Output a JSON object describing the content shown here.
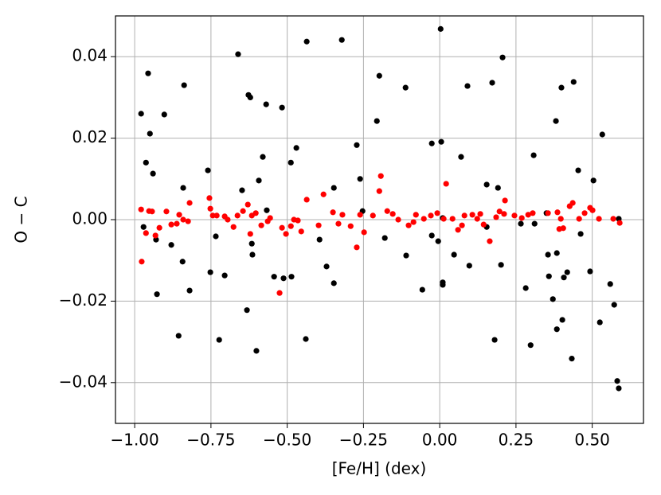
{
  "chart_data": {
    "type": "scatter",
    "xlabel": "[Fe/H] (dex)",
    "ylabel": "O − C",
    "xlim": [
      -1.063,
      0.668
    ],
    "ylim": [
      -0.05,
      0.05
    ],
    "xticks": [
      {
        "value": -1,
        "label": "−1.00"
      },
      {
        "value": -0.75,
        "label": "−0.75"
      },
      {
        "value": -0.5,
        "label": "−0.50"
      },
      {
        "value": -0.25,
        "label": "−0.25"
      },
      {
        "value": 0,
        "label": "0.00"
      },
      0.25,
      {
        "value": 0.5,
        "label": "0.50"
      }
    ],
    "yticks": [
      {
        "value": -0.04,
        "label": "−0.04"
      },
      {
        "value": -0.02,
        "label": "−0.02"
      },
      {
        "value": 0,
        "label": "0.00"
      },
      0.02,
      0.04
    ],
    "grid": true,
    "series": [
      {
        "color": "#000000",
        "x": [
          -0.979,
          -0.971,
          -0.963,
          -0.956,
          -0.95,
          -0.94,
          -0.93,
          -0.927,
          -0.903,
          -0.88,
          -0.841,
          -0.838,
          -0.856,
          -0.843,
          -0.82,
          -0.76,
          -0.752,
          -0.734,
          -0.723,
          -0.705,
          -0.661,
          -0.648,
          -0.632,
          -0.627,
          -0.621,
          -0.616,
          -0.614,
          -0.601,
          -0.593,
          -0.58,
          -0.569,
          -0.567,
          -0.543,
          -0.517,
          -0.512,
          -0.488,
          -0.486,
          -0.47,
          -0.436,
          -0.439,
          -0.394,
          -0.371,
          -0.347,
          -0.347,
          -0.321,
          -0.272,
          -0.261,
          -0.253,
          -0.198,
          -0.206,
          -0.18,
          -0.11,
          -0.112,
          -0.057,
          -0.026,
          -0.026,
          -0.005,
          0.003,
          0.005,
          0.01,
          0.01,
          0.01,
          0.047,
          0.07,
          0.091,
          0.097,
          0.154,
          0.154,
          0.172,
          0.18,
          0.191,
          0.201,
          0.206,
          0.266,
          0.282,
          0.298,
          0.308,
          0.311,
          0.35,
          0.355,
          0.358,
          0.371,
          0.381,
          0.384,
          0.384,
          0.399,
          0.402,
          0.407,
          0.418,
          0.433,
          0.439,
          0.454,
          0.462,
          0.493,
          0.504,
          0.525,
          0.533,
          0.559,
          0.572,
          0.582,
          0.587,
          0.587
        ],
        "values": [
          0.026,
          -0.0018,
          0.014,
          0.0359,
          0.0211,
          0.0113,
          -0.0049,
          -0.0183,
          0.0258,
          -0.0062,
          0.0078,
          0.033,
          -0.0285,
          -0.0103,
          -0.0174,
          0.0121,
          -0.0129,
          -0.0041,
          -0.0295,
          -0.0137,
          0.0406,
          0.0072,
          -0.0222,
          0.0306,
          0.03,
          -0.0059,
          -0.0086,
          -0.0322,
          0.0096,
          0.0154,
          0.0283,
          0.0023,
          -0.014,
          0.0275,
          -0.0144,
          0.014,
          -0.014,
          0.0176,
          0.0437,
          -0.0293,
          -0.0049,
          -0.0115,
          0.0078,
          -0.0156,
          0.0441,
          0.0183,
          0.01,
          0.0021,
          0.0353,
          0.0242,
          -0.0045,
          -0.0088,
          0.0324,
          -0.0172,
          0.0187,
          -0.0039,
          -0.0053,
          0.0468,
          0.0191,
          0.0004,
          -0.0154,
          -0.016,
          -0.0086,
          0.0154,
          0.0328,
          -0.0113,
          0.0086,
          -0.0018,
          0.0336,
          -0.0295,
          0.0078,
          -0.0111,
          0.0398,
          -0.001,
          -0.0168,
          -0.0308,
          0.0158,
          -0.001,
          0.0016,
          -0.0086,
          -0.0139,
          -0.0195,
          0.0242,
          -0.0269,
          -0.0082,
          0.0324,
          -0.0246,
          -0.0142,
          -0.0129,
          -0.0341,
          0.0338,
          0.0121,
          -0.0035,
          -0.0127,
          0.0096,
          -0.0252,
          0.0209,
          -0.0158,
          -0.0209,
          -0.0396,
          -0.0414,
          0.0002
        ]
      },
      {
        "color": "#ff0000",
        "x": [
          -0.979,
          -0.977,
          -0.963,
          -0.953,
          -0.943,
          -0.932,
          -0.919,
          -0.896,
          -0.88,
          -0.862,
          -0.854,
          -0.841,
          -0.825,
          -0.82,
          -0.755,
          -0.752,
          -0.744,
          -0.731,
          -0.705,
          -0.695,
          -0.676,
          -0.663,
          -0.645,
          -0.629,
          -0.621,
          -0.616,
          -0.603,
          -0.585,
          -0.564,
          -0.556,
          -0.525,
          -0.517,
          -0.504,
          -0.488,
          -0.478,
          -0.465,
          -0.454,
          -0.436,
          -0.397,
          -0.381,
          -0.35,
          -0.332,
          -0.319,
          -0.292,
          -0.272,
          -0.261,
          -0.248,
          -0.219,
          -0.198,
          -0.193,
          -0.172,
          -0.154,
          -0.136,
          -0.102,
          -0.086,
          -0.078,
          -0.052,
          -0.029,
          -0.008,
          0.013,
          0.021,
          0.042,
          0.06,
          0.073,
          0.081,
          0.107,
          0.123,
          0.133,
          0.144,
          0.164,
          0.185,
          0.196,
          0.211,
          0.214,
          0.245,
          0.269,
          0.29,
          0.305,
          0.355,
          0.386,
          0.392,
          0.397,
          0.405,
          0.426,
          0.436,
          0.457,
          0.475,
          0.493,
          0.501,
          0.522,
          0.569,
          0.59
        ],
        "values": [
          0.0025,
          -0.0103,
          -0.0033,
          0.0021,
          0.002,
          -0.0039,
          -0.002,
          0.002,
          -0.0012,
          -0.001,
          0.0012,
          0.0,
          -0.0004,
          0.0041,
          0.0053,
          0.0027,
          0.001,
          0.001,
          0.0008,
          0.0,
          -0.0018,
          0.001,
          0.0021,
          0.0037,
          -0.0035,
          0.001,
          0.0016,
          -0.0014,
          -0.0004,
          0.0004,
          -0.018,
          -0.002,
          -0.0035,
          -0.0016,
          0.0,
          -0.0002,
          -0.0029,
          0.0049,
          -0.0014,
          0.0062,
          0.0018,
          -0.001,
          0.0012,
          -0.0016,
          -0.0068,
          0.0012,
          -0.0031,
          0.001,
          0.007,
          0.0107,
          0.0021,
          0.0014,
          0.0,
          -0.0014,
          -0.0006,
          0.0012,
          0.0002,
          0.001,
          0.0016,
          0.0002,
          0.0088,
          0.0002,
          -0.0025,
          -0.0014,
          0.001,
          0.0012,
          0.0002,
          0.0014,
          -0.0012,
          -0.0053,
          0.0006,
          0.002,
          0.0014,
          0.0047,
          0.001,
          0.0004,
          0.0012,
          0.0016,
          0.0016,
          0.0018,
          -0.0023,
          0.0002,
          -0.0021,
          0.0033,
          0.0041,
          0.0002,
          0.0016,
          0.0029,
          0.0023,
          0.0002,
          0.0002,
          -0.0008
        ]
      }
    ]
  }
}
